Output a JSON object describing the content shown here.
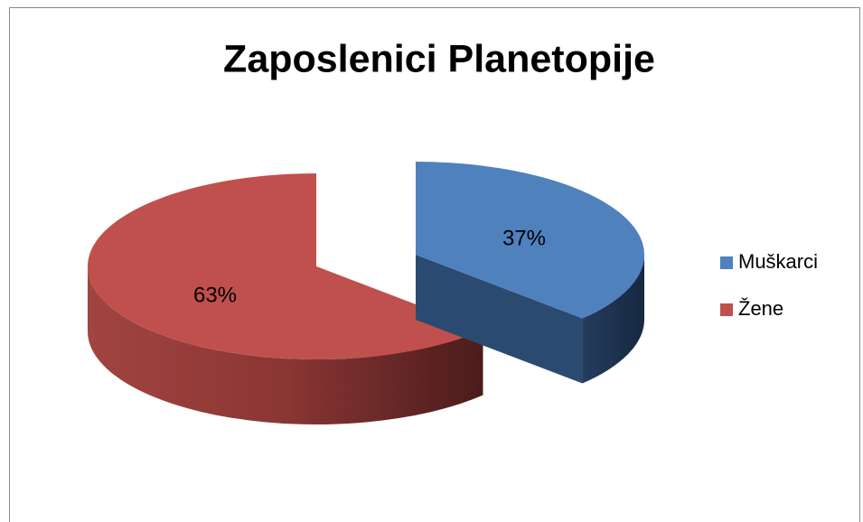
{
  "chart_data": {
    "type": "pie",
    "title": "Zaposlenici Planetopije",
    "categories": [
      "Muškarci",
      "Žene"
    ],
    "values": [
      37,
      63
    ],
    "value_labels": [
      "37%",
      "63%"
    ],
    "colors": [
      "#4f81bd",
      "#c0504d"
    ],
    "legend": "right"
  }
}
